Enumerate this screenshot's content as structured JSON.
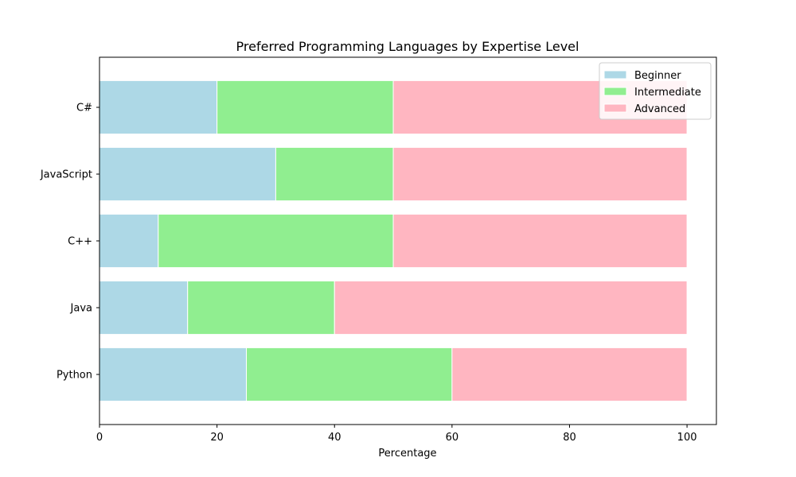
{
  "chart_data": {
    "type": "bar",
    "orientation": "horizontal",
    "stacked": true,
    "title": "Preferred Programming Languages by Expertise Level",
    "xlabel": "Percentage",
    "ylabel": "",
    "xlim": [
      0,
      105
    ],
    "x_ticks": [
      0,
      20,
      40,
      60,
      80,
      100
    ],
    "categories": [
      "Python",
      "Java",
      "C++",
      "JavaScript",
      "C#"
    ],
    "series": [
      {
        "name": "Beginner",
        "color": "#add8e6",
        "values": [
          25,
          15,
          10,
          30,
          20
        ]
      },
      {
        "name": "Intermediate",
        "color": "#90ee90",
        "values": [
          35,
          25,
          40,
          20,
          30
        ]
      },
      {
        "name": "Advanced",
        "color": "#ffb6c1",
        "values": [
          40,
          60,
          50,
          50,
          50
        ]
      }
    ],
    "grid": false,
    "legend_position": "top-right"
  }
}
